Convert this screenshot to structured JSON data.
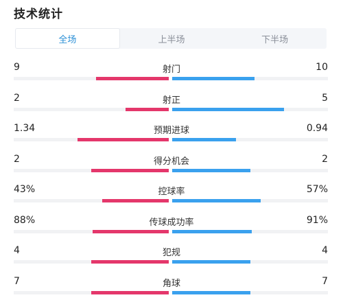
{
  "title": "技术统计",
  "tabs": [
    {
      "label": "全场",
      "active": true
    },
    {
      "label": "上半场",
      "active": false
    },
    {
      "label": "下半场",
      "active": false
    }
  ],
  "colors": {
    "home": "#e4376b",
    "away": "#3aa1ee",
    "accent": "#2b8fd6"
  },
  "stats": [
    {
      "label": "射门",
      "home": "9",
      "away": "10",
      "home_share": 0.47,
      "away_share": 0.53
    },
    {
      "label": "射正",
      "home": "2",
      "away": "5",
      "home_share": 0.28,
      "away_share": 0.72
    },
    {
      "label": "预期进球",
      "home": "1.34",
      "away": "0.94",
      "home_share": 0.59,
      "away_share": 0.41
    },
    {
      "label": "得分机会",
      "home": "2",
      "away": "2",
      "home_share": 0.5,
      "away_share": 0.5
    },
    {
      "label": "控球率",
      "home": "43%",
      "away": "57%",
      "home_share": 0.43,
      "away_share": 0.57
    },
    {
      "label": "传球成功率",
      "home": "88%",
      "away": "91%",
      "home_share": 0.49,
      "away_share": 0.51
    },
    {
      "label": "犯规",
      "home": "4",
      "away": "4",
      "home_share": 0.5,
      "away_share": 0.5
    },
    {
      "label": "角球",
      "home": "7",
      "away": "7",
      "home_share": 0.5,
      "away_share": 0.5
    }
  ]
}
